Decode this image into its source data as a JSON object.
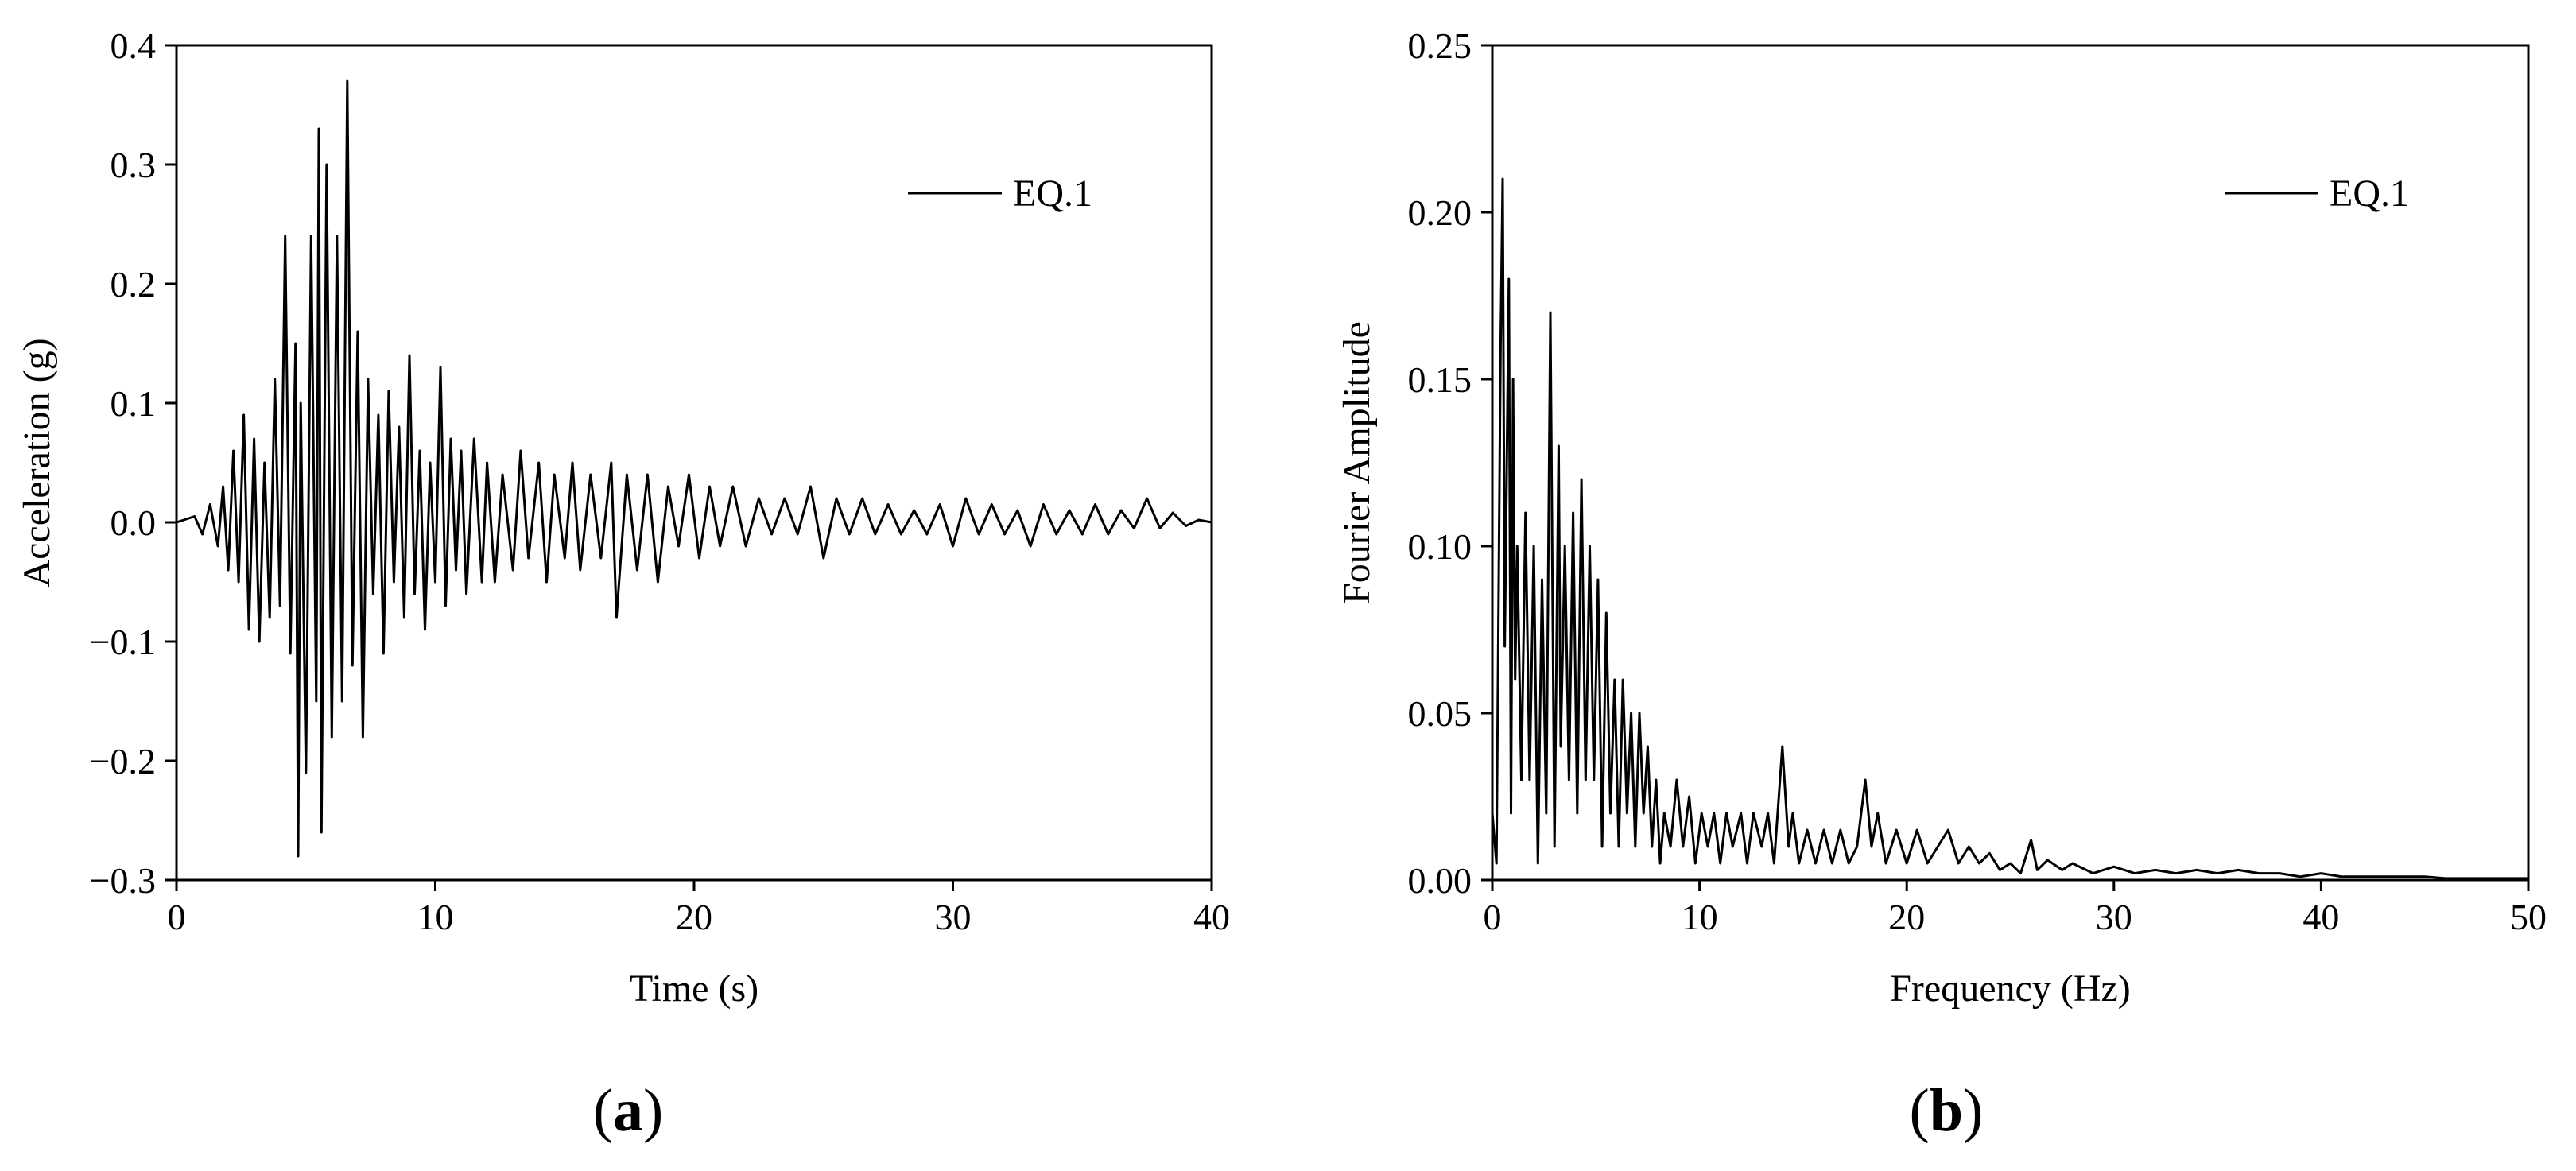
{
  "chart_data": [
    {
      "type": "line",
      "panel_label": "a",
      "title": "",
      "xlabel": "Time (s)",
      "ylabel": "Acceleration (g)",
      "xlim": [
        0,
        40
      ],
      "ylim": [
        -0.3,
        0.4
      ],
      "xticks": [
        0,
        10,
        20,
        30,
        40
      ],
      "xtick_labels": [
        "0",
        "10",
        "20",
        "30",
        "40"
      ],
      "yticks": [
        -0.3,
        -0.2,
        -0.1,
        0.0,
        0.1,
        0.2,
        0.3,
        0.4
      ],
      "ytick_labels": [
        "−0.3",
        "−0.2",
        "−0.1",
        "0.0",
        "0.1",
        "0.2",
        "0.3",
        "0.4"
      ],
      "grid": false,
      "legend": {
        "position": "top-right",
        "entries": [
          "EQ.1"
        ]
      },
      "color": "#000000",
      "series": [
        {
          "name": "EQ.1",
          "x": [
            0,
            0.7,
            1.0,
            1.3,
            1.6,
            1.8,
            2.0,
            2.2,
            2.4,
            2.6,
            2.8,
            3.0,
            3.2,
            3.4,
            3.6,
            3.8,
            4.0,
            4.2,
            4.4,
            4.6,
            4.7,
            4.8,
            5.0,
            5.2,
            5.4,
            5.5,
            5.6,
            5.8,
            6.0,
            6.2,
            6.4,
            6.6,
            6.8,
            7.0,
            7.2,
            7.4,
            7.6,
            7.8,
            8.0,
            8.2,
            8.4,
            8.6,
            8.8,
            9.0,
            9.2,
            9.4,
            9.6,
            9.8,
            10.0,
            10.2,
            10.4,
            10.6,
            10.8,
            11.0,
            11.2,
            11.5,
            11.8,
            12.0,
            12.3,
            12.6,
            13.0,
            13.3,
            13.6,
            14.0,
            14.3,
            14.6,
            15.0,
            15.3,
            15.6,
            16.0,
            16.4,
            16.8,
            17.0,
            17.4,
            17.8,
            18.2,
            18.6,
            19.0,
            19.4,
            19.8,
            20.2,
            20.6,
            21.0,
            21.5,
            22.0,
            22.5,
            23.0,
            23.5,
            24.0,
            24.5,
            25.0,
            25.5,
            26.0,
            26.5,
            27.0,
            27.5,
            28.0,
            28.5,
            29.0,
            29.5,
            30.0,
            30.5,
            31.0,
            31.5,
            32.0,
            32.5,
            33.0,
            33.5,
            34.0,
            34.5,
            35.0,
            35.5,
            36.0,
            36.5,
            37.0,
            37.5,
            38.0,
            38.5,
            39.0,
            39.5,
            40.0
          ],
          "y": [
            0,
            0.005,
            -0.01,
            0.015,
            -0.02,
            0.03,
            -0.04,
            0.06,
            -0.05,
            0.09,
            -0.09,
            0.07,
            -0.1,
            0.05,
            -0.08,
            0.12,
            -0.07,
            0.24,
            -0.11,
            0.15,
            -0.28,
            0.1,
            -0.21,
            0.24,
            -0.15,
            0.33,
            -0.26,
            0.3,
            -0.18,
            0.24,
            -0.15,
            0.37,
            -0.12,
            0.16,
            -0.18,
            0.12,
            -0.06,
            0.09,
            -0.11,
            0.11,
            -0.05,
            0.08,
            -0.08,
            0.14,
            -0.06,
            0.06,
            -0.09,
            0.05,
            -0.05,
            0.13,
            -0.07,
            0.07,
            -0.04,
            0.06,
            -0.06,
            0.07,
            -0.05,
            0.05,
            -0.05,
            0.04,
            -0.04,
            0.06,
            -0.03,
            0.05,
            -0.05,
            0.04,
            -0.03,
            0.05,
            -0.04,
            0.04,
            -0.03,
            0.05,
            -0.08,
            0.04,
            -0.04,
            0.04,
            -0.05,
            0.03,
            -0.02,
            0.04,
            -0.03,
            0.03,
            -0.02,
            0.03,
            -0.02,
            0.02,
            -0.01,
            0.02,
            -0.01,
            0.03,
            -0.03,
            0.02,
            -0.01,
            0.02,
            -0.01,
            0.015,
            -0.01,
            0.01,
            -0.01,
            0.015,
            -0.02,
            0.02,
            -0.01,
            0.015,
            -0.01,
            0.01,
            -0.02,
            0.015,
            -0.01,
            0.01,
            -0.01,
            0.015,
            -0.01,
            0.01,
            -0.005,
            0.02,
            -0.005,
            0.008,
            -0.003,
            0.002,
            0.0
          ]
        }
      ]
    },
    {
      "type": "line",
      "panel_label": "b",
      "title": "",
      "xlabel": "Frequency (Hz)",
      "ylabel": "Fourier Amplitude",
      "xlim": [
        0,
        50
      ],
      "ylim": [
        0,
        0.25
      ],
      "xticks": [
        0,
        10,
        20,
        30,
        40,
        50
      ],
      "xtick_labels": [
        "0",
        "10",
        "20",
        "30",
        "40",
        "50"
      ],
      "yticks": [
        0,
        0.05,
        0.1,
        0.15,
        0.2,
        0.25
      ],
      "ytick_labels": [
        "0.00",
        "0.05",
        "0.10",
        "0.15",
        "0.20",
        "0.25"
      ],
      "grid": false,
      "legend": {
        "position": "top-right",
        "entries": [
          "EQ.1"
        ]
      },
      "color": "#000000",
      "series": [
        {
          "name": "EQ.1",
          "x": [
            0,
            0.2,
            0.4,
            0.5,
            0.6,
            0.8,
            0.9,
            1.0,
            1.1,
            1.2,
            1.4,
            1.6,
            1.8,
            2.0,
            2.2,
            2.4,
            2.6,
            2.8,
            3.0,
            3.2,
            3.3,
            3.5,
            3.7,
            3.9,
            4.1,
            4.3,
            4.5,
            4.7,
            4.9,
            5.1,
            5.3,
            5.5,
            5.7,
            5.9,
            6.1,
            6.3,
            6.5,
            6.7,
            6.9,
            7.1,
            7.3,
            7.5,
            7.7,
            7.9,
            8.1,
            8.3,
            8.6,
            8.9,
            9.2,
            9.5,
            9.8,
            10.1,
            10.4,
            10.7,
            11.0,
            11.3,
            11.6,
            12.0,
            12.3,
            12.6,
            13.0,
            13.3,
            13.6,
            14.0,
            14.3,
            14.5,
            14.8,
            15.2,
            15.6,
            16.0,
            16.4,
            16.8,
            17.2,
            17.6,
            18.0,
            18.3,
            18.6,
            19.0,
            19.5,
            20.0,
            20.5,
            21.0,
            21.5,
            22.0,
            22.5,
            23.0,
            23.5,
            24.0,
            24.5,
            25.0,
            25.5,
            26.0,
            26.3,
            26.8,
            27.5,
            28.0,
            29.0,
            30.0,
            31.0,
            32.0,
            33.0,
            34.0,
            35.0,
            36.0,
            37.0,
            38.0,
            39.0,
            40.0,
            41.0,
            42.0,
            43.0,
            44.0,
            45.0,
            46.0,
            47.0,
            48.0,
            49.0,
            50.0
          ],
          "y": [
            0.02,
            0.005,
            0.16,
            0.21,
            0.07,
            0.18,
            0.02,
            0.15,
            0.06,
            0.1,
            0.03,
            0.11,
            0.03,
            0.1,
            0.005,
            0.09,
            0.02,
            0.17,
            0.01,
            0.13,
            0.04,
            0.1,
            0.03,
            0.11,
            0.02,
            0.12,
            0.03,
            0.1,
            0.03,
            0.09,
            0.01,
            0.08,
            0.02,
            0.06,
            0.01,
            0.06,
            0.02,
            0.05,
            0.01,
            0.05,
            0.02,
            0.04,
            0.01,
            0.03,
            0.005,
            0.02,
            0.01,
            0.03,
            0.01,
            0.025,
            0.005,
            0.02,
            0.01,
            0.02,
            0.005,
            0.02,
            0.01,
            0.02,
            0.005,
            0.02,
            0.01,
            0.02,
            0.005,
            0.04,
            0.01,
            0.02,
            0.005,
            0.015,
            0.005,
            0.015,
            0.005,
            0.015,
            0.005,
            0.01,
            0.03,
            0.01,
            0.02,
            0.005,
            0.015,
            0.005,
            0.015,
            0.005,
            0.01,
            0.015,
            0.005,
            0.01,
            0.005,
            0.008,
            0.003,
            0.005,
            0.002,
            0.012,
            0.003,
            0.006,
            0.003,
            0.005,
            0.002,
            0.004,
            0.002,
            0.003,
            0.002,
            0.003,
            0.002,
            0.003,
            0.002,
            0.002,
            0.001,
            0.002,
            0.001,
            0.001,
            0.001,
            0.001,
            0.001,
            0.0005,
            0.0005,
            0.0005,
            0.0005,
            0.0005
          ]
        }
      ]
    }
  ]
}
